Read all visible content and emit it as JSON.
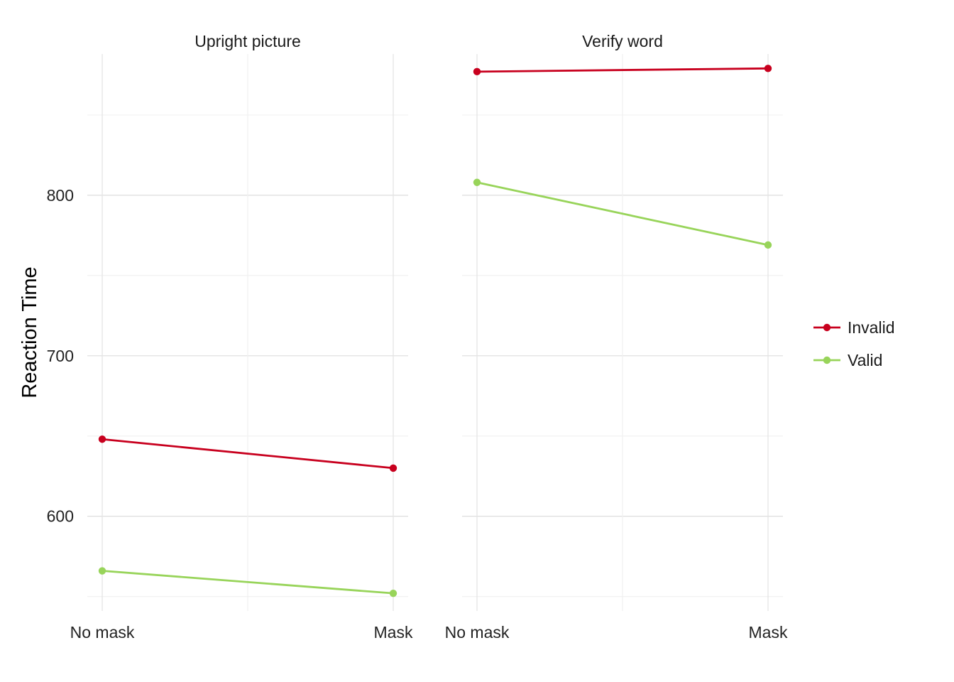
{
  "chart_data": {
    "type": "line",
    "ylabel": "Reaction Time",
    "xlabel": "",
    "categories": [
      "No mask",
      "Mask"
    ],
    "ylim": [
      541,
      888
    ],
    "yticks": [
      600,
      700,
      800
    ],
    "grid": true,
    "legend_position": "right",
    "colors": {
      "Invalid": "#c8001e",
      "Valid": "#98d45a"
    },
    "panels": [
      {
        "title": "Upright picture",
        "series": [
          {
            "name": "Invalid",
            "values": [
              648,
              630
            ]
          },
          {
            "name": "Valid",
            "values": [
              566,
              552
            ]
          }
        ]
      },
      {
        "title": "Verify word",
        "series": [
          {
            "name": "Invalid",
            "values": [
              877,
              879
            ]
          },
          {
            "name": "Valid",
            "values": [
              808,
              769
            ]
          }
        ]
      }
    ],
    "legend": [
      "Invalid",
      "Valid"
    ]
  }
}
